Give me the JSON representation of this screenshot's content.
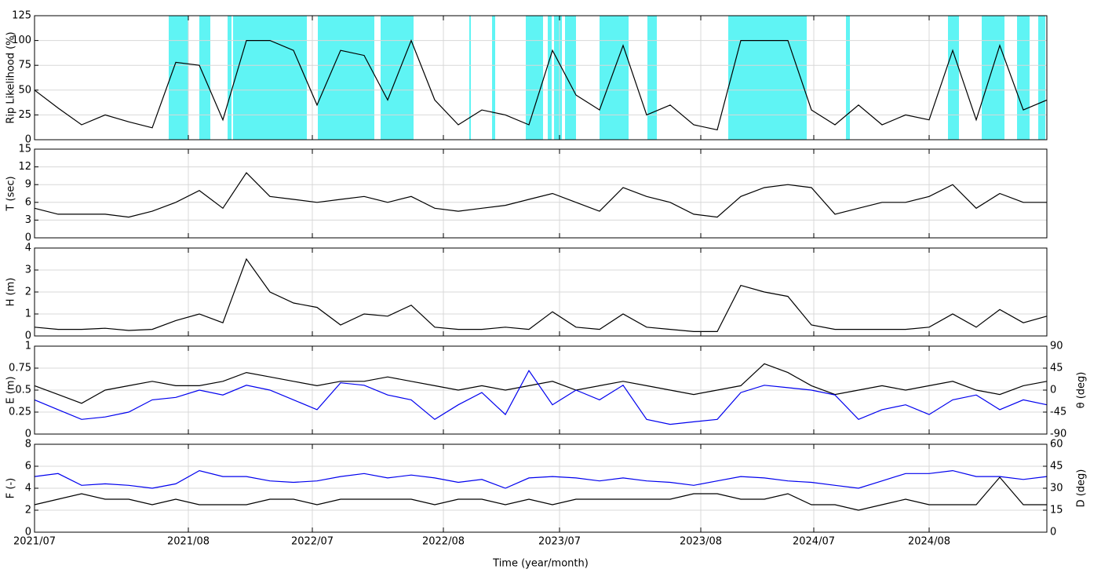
{
  "chart_data": [
    {
      "type": "line",
      "ylabel": "Rip Likelihood (%)",
      "xlim": [
        0,
        1290
      ],
      "xticks": [
        0,
        196,
        354,
        521,
        669,
        849,
        993,
        1140
      ],
      "ylim": [
        0,
        125
      ],
      "yticks": [
        0,
        25,
        50,
        75,
        100,
        125
      ],
      "grid": true,
      "shade_color": "#5ff4f4",
      "shaded": [
        [
          171,
          196
        ],
        [
          210,
          224
        ],
        [
          246,
          251
        ],
        [
          253,
          347
        ],
        [
          361,
          433
        ],
        [
          441,
          483
        ],
        [
          554,
          556
        ],
        [
          583,
          587
        ],
        [
          626,
          648
        ],
        [
          654,
          659
        ],
        [
          662,
          672
        ],
        [
          676,
          690
        ],
        [
          720,
          757
        ],
        [
          781,
          793
        ],
        [
          884,
          984
        ],
        [
          1034,
          1039
        ],
        [
          1164,
          1178
        ],
        [
          1207,
          1236
        ],
        [
          1252,
          1268
        ],
        [
          1279,
          1288
        ]
      ],
      "x": [
        0,
        30,
        60,
        90,
        120,
        150,
        180,
        210,
        240,
        270,
        300,
        330,
        360,
        390,
        420,
        450,
        480,
        510,
        540,
        570,
        600,
        630,
        660,
        690,
        720,
        750,
        780,
        810,
        840,
        870,
        900,
        930,
        960,
        990,
        1020,
        1050,
        1080,
        1110,
        1140,
        1170,
        1200,
        1230,
        1260,
        1290
      ],
      "series": [
        {
          "name": "Rip Likelihood",
          "color": "#000000",
          "values": [
            50,
            32,
            15,
            25,
            18,
            12,
            78,
            75,
            20,
            100,
            100,
            90,
            35,
            90,
            85,
            40,
            100,
            40,
            15,
            30,
            25,
            15,
            90,
            45,
            30,
            95,
            25,
            35,
            15,
            10,
            100,
            100,
            100,
            30,
            15,
            35,
            15,
            25,
            20,
            90,
            20,
            95,
            30,
            40
          ]
        }
      ]
    },
    {
      "type": "line",
      "ylabel": "T (sec)",
      "xlim": [
        0,
        1290
      ],
      "xticks": [
        0,
        196,
        354,
        521,
        669,
        849,
        993,
        1140
      ],
      "ylim": [
        0,
        15
      ],
      "yticks": [
        0,
        3,
        6,
        9,
        12,
        15
      ],
      "grid": true,
      "x": [
        0,
        30,
        60,
        90,
        120,
        150,
        180,
        210,
        240,
        270,
        300,
        330,
        360,
        390,
        420,
        450,
        480,
        510,
        540,
        570,
        600,
        630,
        660,
        690,
        720,
        750,
        780,
        810,
        840,
        870,
        900,
        930,
        960,
        990,
        1020,
        1050,
        1080,
        1110,
        1140,
        1170,
        1200,
        1230,
        1260,
        1290
      ],
      "series": [
        {
          "name": "T",
          "color": "#000000",
          "values": [
            5,
            4,
            4,
            4,
            3.5,
            4.5,
            6,
            8,
            5,
            11,
            7,
            6.5,
            6,
            6.5,
            7,
            6,
            7,
            5,
            4.5,
            5,
            5.5,
            6.5,
            7.5,
            6,
            4.5,
            8.5,
            7,
            6,
            4,
            3.5,
            7,
            8.5,
            9,
            8.5,
            4,
            5,
            6,
            6,
            7,
            9,
            5,
            7.5,
            6,
            6
          ]
        }
      ]
    },
    {
      "type": "line",
      "ylabel": "H (m)",
      "xlim": [
        0,
        1290
      ],
      "xticks": [
        0,
        196,
        354,
        521,
        669,
        849,
        993,
        1140
      ],
      "ylim": [
        0,
        4
      ],
      "yticks": [
        0,
        1,
        2,
        3,
        4
      ],
      "grid": true,
      "x": [
        0,
        30,
        60,
        90,
        120,
        150,
        180,
        210,
        240,
        270,
        300,
        330,
        360,
        390,
        420,
        450,
        480,
        510,
        540,
        570,
        600,
        630,
        660,
        690,
        720,
        750,
        780,
        810,
        840,
        870,
        900,
        930,
        960,
        990,
        1020,
        1050,
        1080,
        1110,
        1140,
        1170,
        1200,
        1230,
        1260,
        1290
      ],
      "series": [
        {
          "name": "H",
          "color": "#000000",
          "values": [
            0.4,
            0.3,
            0.3,
            0.35,
            0.25,
            0.3,
            0.7,
            1,
            0.6,
            3.5,
            2,
            1.5,
            1.3,
            0.5,
            1,
            0.9,
            1.4,
            0.4,
            0.3,
            0.3,
            0.4,
            0.3,
            1.1,
            0.4,
            0.3,
            1,
            0.4,
            0.3,
            0.2,
            0.2,
            2.3,
            2,
            1.8,
            0.5,
            0.3,
            0.3,
            0.3,
            0.3,
            0.4,
            1,
            0.4,
            1.2,
            0.6,
            0.9
          ]
        }
      ]
    },
    {
      "type": "line",
      "ylabel": "E (m)",
      "y2label": "θ (deg)",
      "xlim": [
        0,
        1290
      ],
      "xticks": [
        0,
        196,
        354,
        521,
        669,
        849,
        993,
        1140
      ],
      "ylim": [
        0,
        1
      ],
      "yticks": [
        0,
        0.25,
        0.5,
        0.75,
        1
      ],
      "y2lim": [
        -90,
        90
      ],
      "y2ticks": [
        -90,
        -45,
        0,
        45,
        90
      ],
      "grid": true,
      "x": [
        0,
        30,
        60,
        90,
        120,
        150,
        180,
        210,
        240,
        270,
        300,
        330,
        360,
        390,
        420,
        450,
        480,
        510,
        540,
        570,
        600,
        630,
        660,
        690,
        720,
        750,
        780,
        810,
        840,
        870,
        900,
        930,
        960,
        990,
        1020,
        1050,
        1080,
        1110,
        1140,
        1170,
        1200,
        1230,
        1260,
        1290
      ],
      "series": [
        {
          "name": "E",
          "color": "#000000",
          "values": [
            0.55,
            0.45,
            0.35,
            0.5,
            0.55,
            0.6,
            0.55,
            0.55,
            0.6,
            0.7,
            0.65,
            0.6,
            0.55,
            0.6,
            0.6,
            0.65,
            0.6,
            0.55,
            0.5,
            0.55,
            0.5,
            0.55,
            0.6,
            0.5,
            0.55,
            0.6,
            0.55,
            0.5,
            0.45,
            0.5,
            0.55,
            0.8,
            0.7,
            0.55,
            0.45,
            0.5,
            0.55,
            0.5,
            0.55,
            0.6,
            0.5,
            0.45,
            0.55,
            0.6
          ]
        },
        {
          "name": "θ",
          "color": "#0000ee",
          "axis": "y2",
          "values": [
            -20,
            -40,
            -60,
            -55,
            -45,
            -20,
            -15,
            0,
            -10,
            10,
            0,
            -20,
            -40,
            15,
            10,
            -10,
            -20,
            -60,
            -30,
            -5,
            -50,
            40,
            -30,
            0,
            -20,
            10,
            -60,
            -70,
            -65,
            -60,
            -5,
            10,
            5,
            0,
            -10,
            -60,
            -40,
            -30,
            -50,
            -20,
            -10,
            -40,
            -20,
            -30
          ]
        }
      ]
    },
    {
      "type": "line",
      "ylabel": "F (-)",
      "y2label": "D (deg)",
      "xlabel": "Time (year/month)",
      "xlim": [
        0,
        1290
      ],
      "xticks": [
        {
          "value": 0,
          "label": "2021/07"
        },
        {
          "value": 196,
          "label": "2021/08"
        },
        {
          "value": 354,
          "label": "2022/07"
        },
        {
          "value": 521,
          "label": "2022/08"
        },
        {
          "value": 669,
          "label": "2023/07"
        },
        {
          "value": 849,
          "label": "2023/08"
        },
        {
          "value": 993,
          "label": "2024/07"
        },
        {
          "value": 1140,
          "label": "2024/08"
        }
      ],
      "ylim": [
        0,
        8
      ],
      "yticks": [
        0,
        2,
        4,
        6,
        8
      ],
      "y2lim": [
        0,
        60
      ],
      "y2ticks": [
        0,
        15,
        30,
        45,
        60
      ],
      "grid": true,
      "x": [
        0,
        30,
        60,
        90,
        120,
        150,
        180,
        210,
        240,
        270,
        300,
        330,
        360,
        390,
        420,
        450,
        480,
        510,
        540,
        570,
        600,
        630,
        660,
        690,
        720,
        750,
        780,
        810,
        840,
        870,
        900,
        930,
        960,
        990,
        1020,
        1050,
        1080,
        1110,
        1140,
        1170,
        1200,
        1230,
        1260,
        1290
      ],
      "series": [
        {
          "name": "F",
          "color": "#000000",
          "values": [
            2.5,
            3,
            3.5,
            3,
            3,
            2.5,
            3,
            2.5,
            2.5,
            2.5,
            3,
            3,
            2.5,
            3,
            3,
            3,
            3,
            2.5,
            3,
            3,
            2.5,
            3,
            2.5,
            3,
            3,
            3,
            3,
            3,
            3.5,
            3.5,
            3,
            3,
            3.5,
            2.5,
            2.5,
            2,
            2.5,
            3,
            2.5,
            2.5,
            2.5,
            5,
            2.5,
            2.5
          ]
        },
        {
          "name": "D",
          "color": "#0000ee",
          "axis": "y2",
          "values": [
            38,
            40,
            32,
            33,
            32,
            30,
            33,
            42,
            38,
            38,
            35,
            34,
            35,
            38,
            40,
            37,
            39,
            37,
            34,
            36,
            30,
            37,
            38,
            37,
            35,
            37,
            35,
            34,
            32,
            35,
            38,
            37,
            35,
            34,
            32,
            30,
            35,
            40,
            40,
            42,
            38,
            38,
            36,
            38
          ]
        }
      ]
    }
  ]
}
